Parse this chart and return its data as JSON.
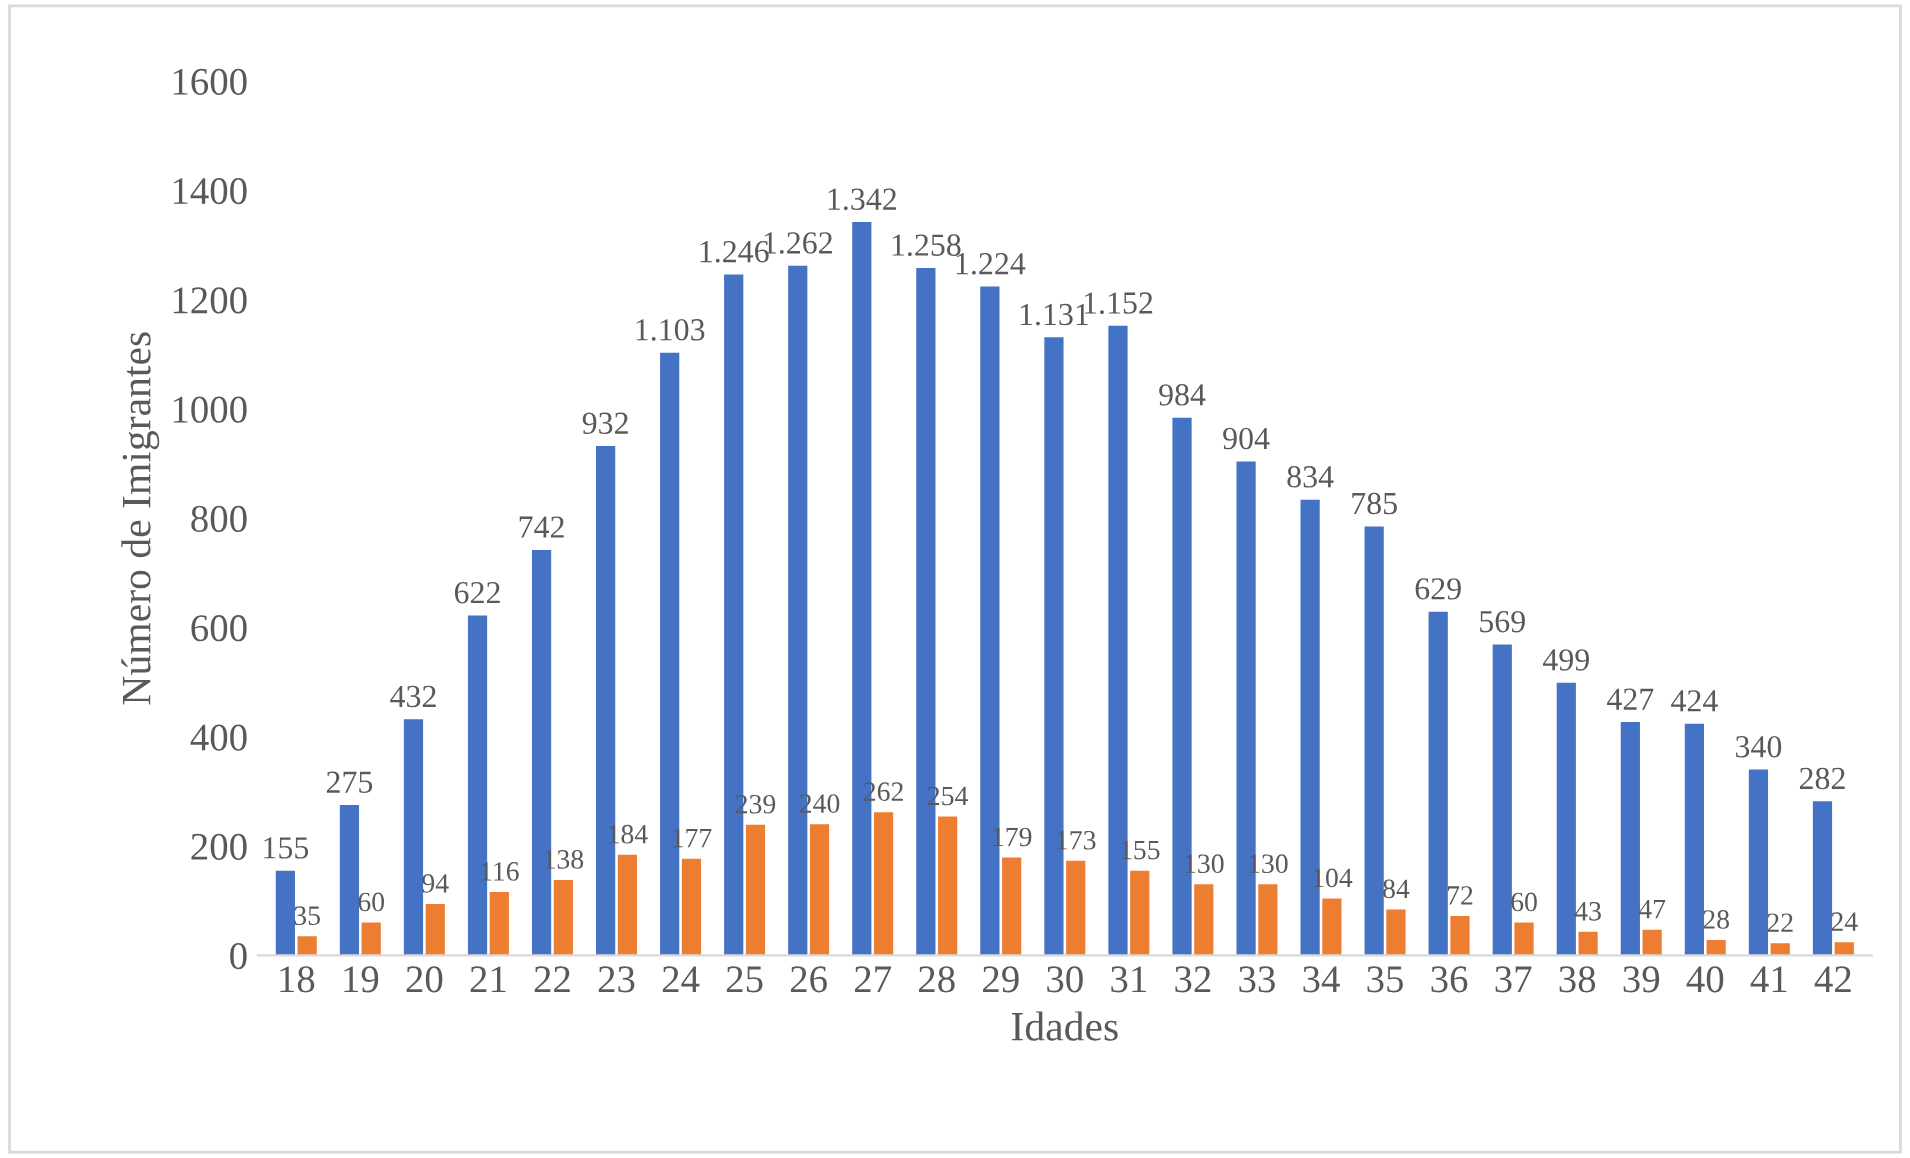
{
  "chart_data": {
    "type": "bar",
    "xlabel": "Idades",
    "ylabel": "Número de Imigrantes",
    "categories": [
      "18",
      "19",
      "20",
      "21",
      "22",
      "23",
      "24",
      "25",
      "26",
      "27",
      "28",
      "29",
      "30",
      "31",
      "32",
      "33",
      "34",
      "35",
      "36",
      "37",
      "38",
      "39",
      "40",
      "41",
      "42"
    ],
    "series": [
      {
        "color": "#4472c4",
        "values": [
          155,
          275,
          432,
          622,
          742,
          932,
          1103,
          1246,
          1262,
          1342,
          1258,
          1224,
          1131,
          1152,
          984,
          904,
          834,
          785,
          629,
          569,
          499,
          427,
          424,
          340,
          282
        ],
        "value_labels": [
          "155",
          "275",
          "432",
          "622",
          "742",
          "932",
          "1.103",
          "1.246",
          "1.262",
          "1.342",
          "1.258",
          "1.224",
          "1.131",
          "1.152",
          "984",
          "904",
          "834",
          "785",
          "629",
          "569",
          "499",
          "427",
          "424",
          "340",
          "282"
        ]
      },
      {
        "color": "#ed7d31",
        "values": [
          35,
          60,
          94,
          116,
          138,
          184,
          177,
          239,
          240,
          262,
          254,
          179,
          173,
          155,
          130,
          130,
          104,
          84,
          72,
          60,
          43,
          47,
          28,
          22,
          24
        ],
        "value_labels": [
          "35",
          "60",
          "94",
          "116",
          "138",
          "184",
          "177",
          "239",
          "240",
          "262",
          "254",
          "179",
          "173",
          "155",
          "130",
          "130",
          "104",
          "84",
          "72",
          "60",
          "43",
          "47",
          "28",
          "22",
          "24"
        ]
      }
    ],
    "ylim": [
      0,
      1600
    ],
    "yticks": [
      0,
      200,
      400,
      600,
      800,
      1000,
      1200,
      1400,
      1600
    ],
    "grid": false
  }
}
